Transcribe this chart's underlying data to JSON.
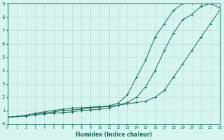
{
  "xlabel": "Humidex (Indice chaleur)",
  "bg_color": "#d6f5f0",
  "grid_color": "#c0d8d4",
  "line_color": "#1a6b5a",
  "xlim": [
    0,
    23
  ],
  "ylim": [
    0,
    9
  ],
  "xticks": [
    0,
    1,
    2,
    3,
    4,
    5,
    6,
    7,
    8,
    9,
    10,
    11,
    12,
    13,
    14,
    15,
    16,
    17,
    18,
    19,
    20,
    21,
    22,
    23
  ],
  "yticks": [
    0,
    1,
    2,
    3,
    4,
    5,
    6,
    7,
    8,
    9
  ],
  "series1_x": [
    0,
    1,
    2,
    3,
    4,
    5,
    6,
    7,
    8,
    9,
    10,
    11,
    12,
    13,
    14,
    15,
    16,
    17,
    18,
    19,
    20,
    21,
    22,
    23
  ],
  "series1_y": [
    0.5,
    0.55,
    0.6,
    0.7,
    0.75,
    0.8,
    0.85,
    0.9,
    1.0,
    1.05,
    1.1,
    1.2,
    1.4,
    1.6,
    2.0,
    2.8,
    4.0,
    5.5,
    6.8,
    7.8,
    8.2,
    8.8,
    9.0,
    8.7
  ],
  "series2_x": [
    0,
    1,
    2,
    3,
    4,
    5,
    6,
    7,
    8,
    9,
    10,
    11,
    12,
    13,
    14,
    15,
    16,
    17,
    18,
    19,
    20,
    21,
    22,
    23
  ],
  "series2_y": [
    0.5,
    0.55,
    0.6,
    0.7,
    0.8,
    0.9,
    1.0,
    1.05,
    1.1,
    1.2,
    1.25,
    1.3,
    1.4,
    1.5,
    1.6,
    1.7,
    2.0,
    2.5,
    3.5,
    4.5,
    5.5,
    6.5,
    7.5,
    8.5
  ],
  "series3_x": [
    0,
    1,
    2,
    3,
    4,
    5,
    6,
    7,
    8,
    9,
    10,
    11,
    12,
    13,
    14,
    15,
    16,
    17,
    18,
    19,
    20,
    21,
    22,
    23
  ],
  "series3_y": [
    0.5,
    0.55,
    0.65,
    0.8,
    0.9,
    1.0,
    1.1,
    1.2,
    1.2,
    1.25,
    1.3,
    1.35,
    1.55,
    2.2,
    3.5,
    4.8,
    6.5,
    7.5,
    8.5,
    9.0,
    9.0,
    9.0,
    9.0,
    9.0
  ]
}
